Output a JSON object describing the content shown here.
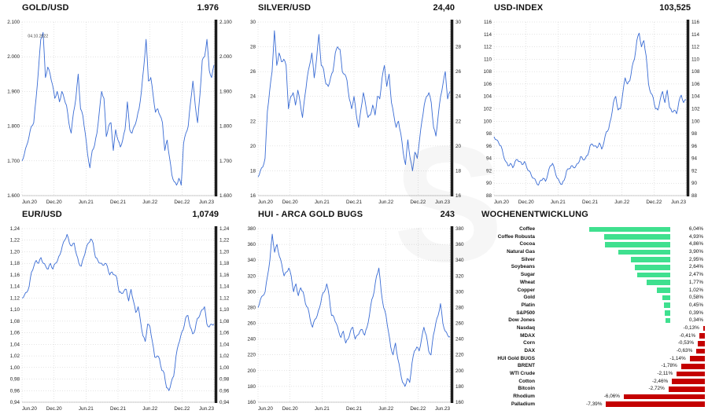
{
  "watermark": {
    "text": "S"
  },
  "chart_data": [
    {
      "type": "line",
      "id": "gold-usd",
      "title": "GOLD/USD",
      "current_value": "1.976",
      "line_color": "#3a6cd4",
      "ymin": 1600,
      "ymax": 2100,
      "y_tick_labels": [
        "1.600",
        "1.700",
        "1.800",
        "1.900",
        "2.000",
        "2.100"
      ],
      "x_tick_labels": [
        "Jun.20",
        "Dec.20",
        "Jun.21",
        "Dec.21",
        "Jun.22",
        "Dec.22",
        "Jun.23"
      ],
      "annotation": {
        "text": "04.10.2022",
        "x": 0.03,
        "y": 0.06
      },
      "values": [
        1700,
        1720,
        1745,
        1770,
        1800,
        1810,
        1880,
        1960,
        2050,
        2070,
        1940,
        1970,
        1950,
        1920,
        1880,
        1900,
        1870,
        1900,
        1880,
        1860,
        1810,
        1780,
        1840,
        1880,
        1950,
        1850,
        1830,
        1780,
        1720,
        1680,
        1730,
        1745,
        1780,
        1840,
        1900,
        1880,
        1770,
        1800,
        1810,
        1730,
        1790,
        1760,
        1740,
        1760,
        1790,
        1870,
        1790,
        1780,
        1800,
        1820,
        1850,
        1900,
        1970,
        2050,
        1930,
        1940,
        1890,
        1840,
        1850,
        1830,
        1810,
        1730,
        1760,
        1710,
        1660,
        1640,
        1630,
        1650,
        1630,
        1750,
        1780,
        1800,
        1870,
        1930,
        1860,
        1810,
        1890,
        1990,
        2000,
        2050,
        1960,
        1940,
        1976
      ]
    },
    {
      "type": "line",
      "id": "silver-usd",
      "title": "SILVER/USD",
      "current_value": "24,40",
      "line_color": "#3a6cd4",
      "ymin": 16,
      "ymax": 30,
      "y_tick_labels": [
        "16",
        "18",
        "20",
        "22",
        "24",
        "26",
        "28",
        "30"
      ],
      "x_tick_labels": [
        "Jun.20",
        "Dec.20",
        "Jun.21",
        "Dec.21",
        "Jun.22",
        "Dec.22",
        "Jun.23"
      ],
      "values": [
        17.5,
        18,
        18.3,
        19,
        22.8,
        24.5,
        26,
        29.3,
        26.5,
        27.5,
        26.8,
        27,
        26.5,
        23,
        24,
        24.3,
        23.3,
        24.5,
        23.5,
        22.3,
        24,
        25.5,
        26.5,
        27.5,
        25.5,
        27,
        29,
        26.5,
        26.2,
        25,
        24.8,
        25.5,
        26,
        27.5,
        28,
        27.8,
        26,
        25.8,
        25.3,
        23.8,
        23,
        24,
        22.5,
        21.5,
        23,
        24.3,
        23.3,
        22.3,
        22.5,
        23.3,
        22.5,
        24,
        23.8,
        25.5,
        26.5,
        24.8,
        25.8,
        23.5,
        22.5,
        21.5,
        22,
        21,
        19.5,
        18.5,
        20.5,
        19,
        18,
        19.5,
        19,
        20.5,
        22,
        23.3,
        24,
        24.3,
        23.5,
        21.5,
        20.8,
        22.5,
        24,
        25,
        26,
        23.8,
        24.4
      ]
    },
    {
      "type": "line",
      "id": "usd-index",
      "title": "USD-INDEX",
      "current_value": "103,525",
      "line_color": "#3a6cd4",
      "ymin": 88,
      "ymax": 116,
      "y_tick_labels": [
        "88",
        "90",
        "92",
        "94",
        "96",
        "98",
        "100",
        "102",
        "104",
        "106",
        "108",
        "110",
        "112",
        "114",
        "116"
      ],
      "x_tick_labels": [
        "Jun.20",
        "Dec.20",
        "Jun.21",
        "Dec.21",
        "Jun.22",
        "Dec.22",
        "Jun.23"
      ],
      "values": [
        97.5,
        97,
        96.5,
        96,
        94.5,
        93.5,
        92.8,
        93.2,
        92.5,
        93.5,
        93.8,
        93.5,
        93,
        93.5,
        92.5,
        92,
        91.2,
        90.8,
        90.2,
        89.7,
        90.5,
        90.8,
        90.3,
        91.5,
        92.8,
        93.2,
        92,
        90.8,
        90.2,
        89.8,
        90.5,
        92,
        92.3,
        92.8,
        92.5,
        92.8,
        93.2,
        94.3,
        93.8,
        94,
        94.5,
        96,
        96.3,
        96,
        95.7,
        96.5,
        95.5,
        96.7,
        98.3,
        98.8,
        100.5,
        103,
        104,
        101.8,
        102,
        104.5,
        107,
        106,
        106.5,
        108.8,
        110,
        113,
        114.2,
        112,
        113,
        110.5,
        106,
        104.5,
        103.8,
        102,
        101.8,
        103.5,
        104.8,
        103,
        105,
        102.2,
        101.5,
        101.8,
        101.2,
        103.2,
        104.2,
        103,
        103.5
      ]
    },
    {
      "type": "line",
      "id": "eur-usd",
      "title": "EUR/USD",
      "current_value": "1,0749",
      "line_color": "#3a6cd4",
      "ymin": 0.94,
      "ymax": 1.24,
      "y_tick_labels": [
        "0,94",
        "0,96",
        "0,98",
        "1,00",
        "1,02",
        "1,04",
        "1,06",
        "1,08",
        "1,10",
        "1,12",
        "1,14",
        "1,16",
        "1,18",
        "1,20",
        "1,22",
        "1,24"
      ],
      "x_tick_labels": [
        "Jun.20",
        "Dec.20",
        "Jun.21",
        "Dec.21",
        "Jun.22",
        "Dec.22",
        "Jun.23"
      ],
      "values": [
        1.12,
        1.125,
        1.13,
        1.14,
        1.165,
        1.175,
        1.185,
        1.18,
        1.19,
        1.18,
        1.175,
        1.17,
        1.18,
        1.17,
        1.18,
        1.185,
        1.195,
        1.21,
        1.22,
        1.23,
        1.215,
        1.21,
        1.215,
        1.195,
        1.18,
        1.175,
        1.19,
        1.205,
        1.215,
        1.222,
        1.215,
        1.19,
        1.185,
        1.18,
        1.177,
        1.18,
        1.175,
        1.16,
        1.165,
        1.16,
        1.155,
        1.13,
        1.128,
        1.132,
        1.135,
        1.115,
        1.135,
        1.115,
        1.095,
        1.105,
        1.08,
        1.055,
        1.045,
        1.075,
        1.07,
        1.045,
        1.018,
        1.02,
        1.015,
        0.995,
        0.99,
        0.965,
        0.96,
        0.975,
        0.985,
        1.02,
        1.04,
        1.055,
        1.065,
        1.085,
        1.09,
        1.07,
        1.058,
        1.065,
        1.085,
        1.09,
        1.1,
        1.105,
        1.075,
        1.07,
        1.075,
        1.0749
      ]
    },
    {
      "type": "line",
      "id": "hui",
      "title": "HUI - ARCA GOLD BUGS",
      "current_value": "243",
      "line_color": "#3a6cd4",
      "ymin": 160,
      "ymax": 380,
      "y_tick_labels": [
        "160",
        "180",
        "200",
        "220",
        "240",
        "260",
        "280",
        "300",
        "320",
        "340",
        "360",
        "380"
      ],
      "x_tick_labels": [
        "Jun.20",
        "Dec.20",
        "Jun.21",
        "Dec.21",
        "Jun.22",
        "Dec.22",
        "Jun.23"
      ],
      "values": [
        280,
        290,
        295,
        300,
        320,
        340,
        373,
        350,
        360,
        345,
        335,
        320,
        325,
        330,
        320,
        300,
        310,
        295,
        305,
        300,
        285,
        280,
        265,
        255,
        265,
        270,
        280,
        295,
        300,
        310,
        295,
        270,
        268,
        260,
        250,
        242,
        250,
        235,
        240,
        250,
        255,
        240,
        245,
        250,
        252,
        245,
        255,
        270,
        290,
        300,
        320,
        330,
        300,
        280,
        270,
        250,
        230,
        220,
        235,
        215,
        200,
        185,
        180,
        190,
        185,
        210,
        225,
        230,
        225,
        240,
        255,
        245,
        225,
        220,
        245,
        260,
        270,
        285,
        260,
        250,
        245,
        243
      ]
    },
    {
      "type": "bar",
      "id": "weekly-performance",
      "orientation": "horizontal",
      "title": "WOCHENENTWICKLUNG",
      "positive_color": "#3fe08f",
      "negative_color": "#c40000",
      "items": [
        {
          "label": "Coffee",
          "value": 6.04,
          "display": "6,04%"
        },
        {
          "label": "Coffee Robusta",
          "value": 4.93,
          "display": "4,93%"
        },
        {
          "label": "Cocoa",
          "value": 4.86,
          "display": "4,86%"
        },
        {
          "label": "Natural Gas",
          "value": 3.9,
          "display": "3,90%"
        },
        {
          "label": "Silver",
          "value": 2.95,
          "display": "2,95%"
        },
        {
          "label": "Soybeans",
          "value": 2.64,
          "display": "2,64%"
        },
        {
          "label": "Sugar",
          "value": 2.47,
          "display": "2,47%"
        },
        {
          "label": "Wheat",
          "value": 1.77,
          "display": "1,77%"
        },
        {
          "label": "Copper",
          "value": 1.02,
          "display": "1,02%"
        },
        {
          "label": "Gold",
          "value": 0.58,
          "display": "0,58%"
        },
        {
          "label": "Platin",
          "value": 0.45,
          "display": "0,45%"
        },
        {
          "label": "S&P500",
          "value": 0.39,
          "display": "0,39%"
        },
        {
          "label": "Dow Jones",
          "value": 0.34,
          "display": "0,34%"
        },
        {
          "label": "Nasdaq",
          "value": -0.13,
          "display": "-0,13%"
        },
        {
          "label": "MDAX",
          "value": -0.41,
          "display": "-0,41%"
        },
        {
          "label": "Corn",
          "value": -0.53,
          "display": "-0,53%"
        },
        {
          "label": "DAX",
          "value": -0.63,
          "display": "-0,63%"
        },
        {
          "label": "HUI Gold BUGS",
          "value": -1.14,
          "display": "-1,14%"
        },
        {
          "label": "BRENT",
          "value": -1.78,
          "display": "-1,78%"
        },
        {
          "label": "WTI Crude",
          "value": -2.11,
          "display": "-2,11%"
        },
        {
          "label": "Cotton",
          "value": -2.46,
          "display": "-2,46%"
        },
        {
          "label": "Bitcoin",
          "value": -2.72,
          "display": "-2,72%"
        },
        {
          "label": "Rhodium",
          "value": -6.06,
          "display": "-6,06%"
        },
        {
          "label": "Palladium",
          "value": -7.39,
          "display": "-7,39%"
        }
      ]
    }
  ]
}
